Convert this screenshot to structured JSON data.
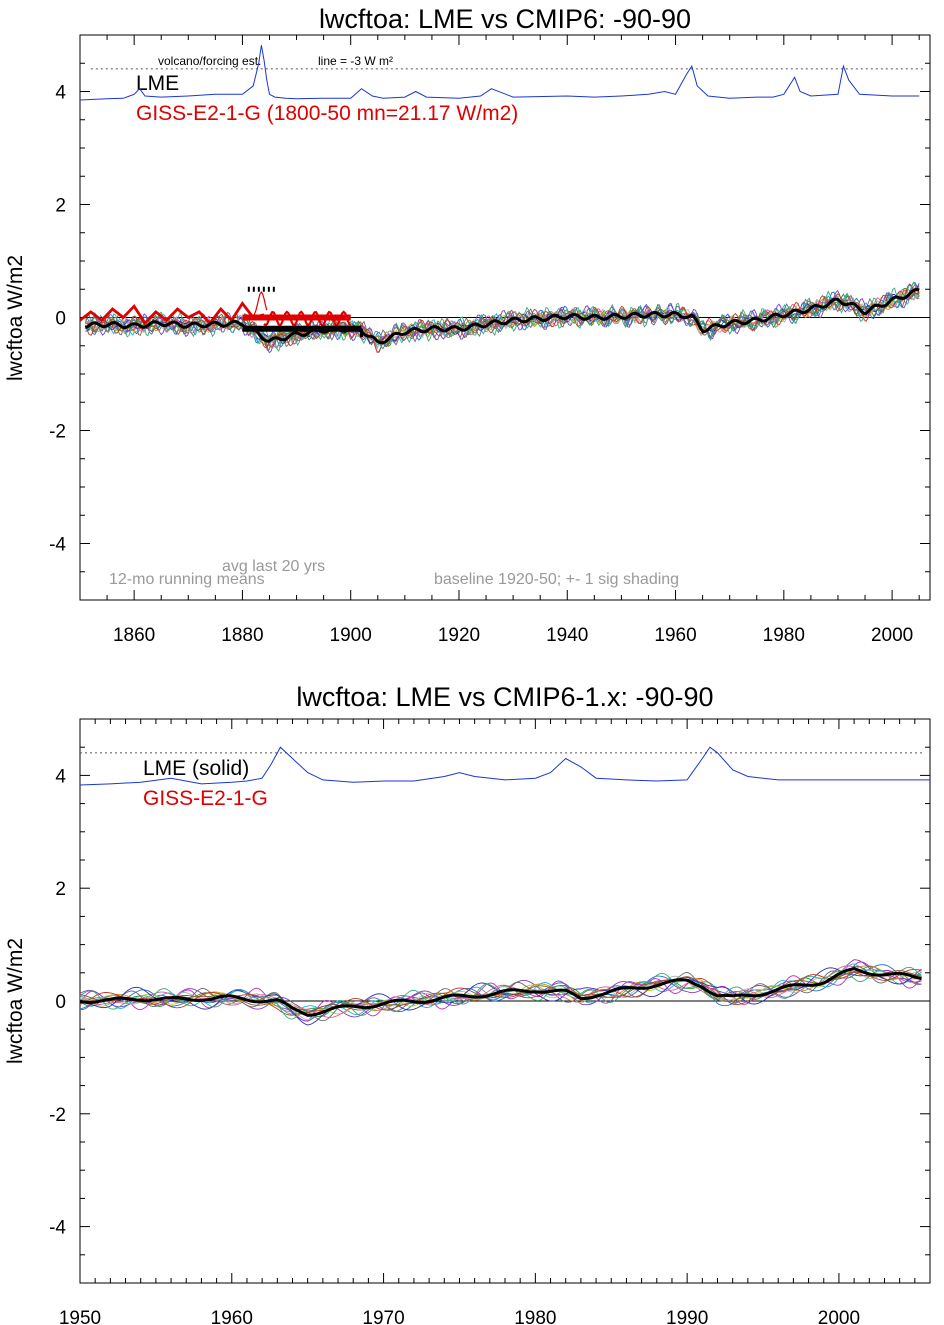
{
  "chart_data": [
    {
      "type": "line",
      "title": "lwcftoa: LME vs CMIP6: -90-90",
      "ylabel": "lwcftoa W/m2",
      "xlim": [
        1850,
        2007
      ],
      "ylim": [
        -5,
        5
      ],
      "x_ticks": [
        "1860",
        "1880",
        "1900",
        "1920",
        "1940",
        "1960",
        "1980",
        "2000"
      ],
      "x_tick_values": [
        1860,
        1880,
        1900,
        1920,
        1940,
        1960,
        1980,
        2000
      ],
      "y_ticks": [
        "4",
        "2",
        "0",
        "-2",
        "-4"
      ],
      "y_tick_values": [
        4,
        2,
        0,
        -2,
        -4
      ],
      "legend": [
        {
          "label": "LME",
          "color": "#000000"
        },
        {
          "label": "GISS-E2-1-G (1800-50 mn=21.17 W/m2)",
          "color": "#e00000"
        }
      ],
      "annotations": {
        "volcano": "volcano/forcing est.",
        "line_note": "line = -3 W m²",
        "running": "12-mo running means",
        "avg": "avg last 20 yrs",
        "baseline": "baseline 1920-50; +- 1 sig shading"
      },
      "reference_line": 4.4,
      "lme_mean": {
        "x": [
          1850,
          1855,
          1860,
          1865,
          1870,
          1875,
          1880,
          1885,
          1890,
          1895,
          1900,
          1902,
          1905,
          1910,
          1915,
          1920,
          1925,
          1930,
          1935,
          1940,
          1945,
          1950,
          1955,
          1960,
          1963,
          1965,
          1970,
          1975,
          1980,
          1985,
          1990,
          1992,
          1995,
          2000,
          2005
        ],
        "y": [
          -0.15,
          -0.12,
          -0.15,
          -0.1,
          -0.14,
          -0.12,
          -0.1,
          -0.42,
          -0.3,
          -0.22,
          -0.2,
          -0.22,
          -0.45,
          -0.25,
          -0.2,
          -0.2,
          -0.12,
          -0.05,
          -0.02,
          0.02,
          0.0,
          0.02,
          0.05,
          0.05,
          0.02,
          -0.22,
          -0.1,
          -0.05,
          0.05,
          0.15,
          0.3,
          0.25,
          0.1,
          0.3,
          0.48
        ]
      },
      "giss": {
        "x": [
          1850,
          1852,
          1854,
          1856,
          1858,
          1860,
          1862,
          1864,
          1866,
          1868,
          1870,
          1872,
          1874,
          1876,
          1878,
          1880,
          1882,
          1884
        ],
        "y": [
          -0.05,
          0.1,
          -0.05,
          0.15,
          0.0,
          0.2,
          -0.1,
          0.1,
          -0.05,
          0.15,
          0.0,
          0.1,
          -0.1,
          0.15,
          -0.05,
          0.25,
          0.0,
          0.05
        ]
      },
      "giss_avg_last_20": {
        "x": [
          1880,
          1900
        ],
        "y": 0.0
      },
      "lme_avg_last_20": {
        "x": [
          1880,
          1902
        ],
        "y": -0.2
      },
      "forcing": {
        "x": [
          1850,
          1855,
          1858,
          1860,
          1861,
          1862,
          1865,
          1870,
          1875,
          1880,
          1882,
          1883,
          1883.5,
          1884,
          1884.5,
          1885,
          1886,
          1888,
          1890,
          1895,
          1900,
          1902,
          1904,
          1906,
          1910,
          1912,
          1914,
          1920,
          1924,
          1926,
          1930,
          1940,
          1945,
          1950,
          1955,
          1958,
          1960,
          1962,
          1963,
          1964,
          1966,
          1970,
          1975,
          1978,
          1980,
          1982,
          1983,
          1985,
          1990,
          1991,
          1992,
          1994,
          2000,
          2005
        ],
        "y": [
          3.85,
          3.87,
          3.88,
          3.95,
          4.05,
          3.92,
          3.9,
          3.92,
          3.95,
          3.95,
          4.1,
          4.5,
          4.82,
          4.55,
          4.2,
          3.95,
          3.9,
          3.88,
          3.87,
          3.88,
          3.88,
          4.05,
          3.92,
          3.88,
          3.9,
          4.0,
          3.9,
          3.88,
          3.92,
          4.05,
          3.9,
          3.92,
          3.9,
          3.92,
          3.95,
          4.0,
          3.95,
          4.3,
          4.45,
          4.1,
          3.92,
          3.88,
          3.9,
          3.9,
          3.95,
          4.25,
          4.0,
          3.92,
          3.95,
          4.45,
          4.2,
          3.95,
          3.92,
          3.92
        ]
      }
    },
    {
      "type": "line",
      "title": "lwcftoa: LME vs CMIP6-1.x: -90-90",
      "ylabel": "lwcftoa W/m2",
      "xlim": [
        1950,
        2006
      ],
      "ylim": [
        -5,
        5
      ],
      "x_ticks": [
        "1950",
        "1960",
        "1970",
        "1980",
        "1990",
        "2000"
      ],
      "x_tick_values": [
        1950,
        1960,
        1970,
        1980,
        1990,
        2000
      ],
      "y_ticks": [
        "4",
        "2",
        "0",
        "-2",
        "-4"
      ],
      "y_tick_values": [
        4,
        2,
        0,
        -2,
        -4
      ],
      "legend": [
        {
          "label": "LME (solid)",
          "color": "#000000"
        },
        {
          "label": "GISS-E2-1-G",
          "color": "#e00000"
        }
      ],
      "reference_line": 4.4,
      "lme_mean": {
        "x": [
          1950,
          1952,
          1954,
          1956,
          1958,
          1960,
          1962,
          1963,
          1964,
          1965,
          1966,
          1968,
          1970,
          1972,
          1974,
          1976,
          1978,
          1980,
          1982,
          1983,
          1984,
          1986,
          1988,
          1990,
          1991,
          1992,
          1993,
          1995,
          1997,
          1999,
          2001,
          2003,
          2005
        ],
        "y": [
          0.02,
          0.0,
          0.05,
          0.02,
          0.05,
          0.05,
          0.02,
          0.0,
          -0.15,
          -0.22,
          -0.18,
          -0.1,
          -0.05,
          0.0,
          0.05,
          0.1,
          0.15,
          0.2,
          0.15,
          0.05,
          0.12,
          0.2,
          0.3,
          0.35,
          0.28,
          0.1,
          0.05,
          0.15,
          0.25,
          0.35,
          0.55,
          0.48,
          0.42
        ]
      },
      "forcing": {
        "x": [
          1950,
          1952,
          1954,
          1956,
          1958,
          1960,
          1961,
          1962,
          1962.6,
          1963.2,
          1964,
          1965,
          1966,
          1968,
          1970,
          1972,
          1974,
          1975,
          1976,
          1978,
          1980,
          1981,
          1982,
          1983,
          1984,
          1986,
          1988,
          1990,
          1991,
          1991.5,
          1992,
          1993,
          1994,
          1996,
          2000,
          2002,
          2006
        ],
        "y": [
          3.83,
          3.85,
          3.88,
          3.95,
          3.85,
          3.88,
          3.9,
          3.95,
          4.2,
          4.5,
          4.3,
          4.05,
          3.92,
          3.88,
          3.9,
          3.9,
          3.98,
          4.05,
          3.98,
          3.92,
          3.95,
          4.05,
          4.3,
          4.15,
          3.95,
          3.92,
          3.9,
          3.92,
          4.3,
          4.5,
          4.4,
          4.1,
          3.98,
          3.92,
          3.92,
          3.92,
          3.92
        ]
      }
    }
  ]
}
